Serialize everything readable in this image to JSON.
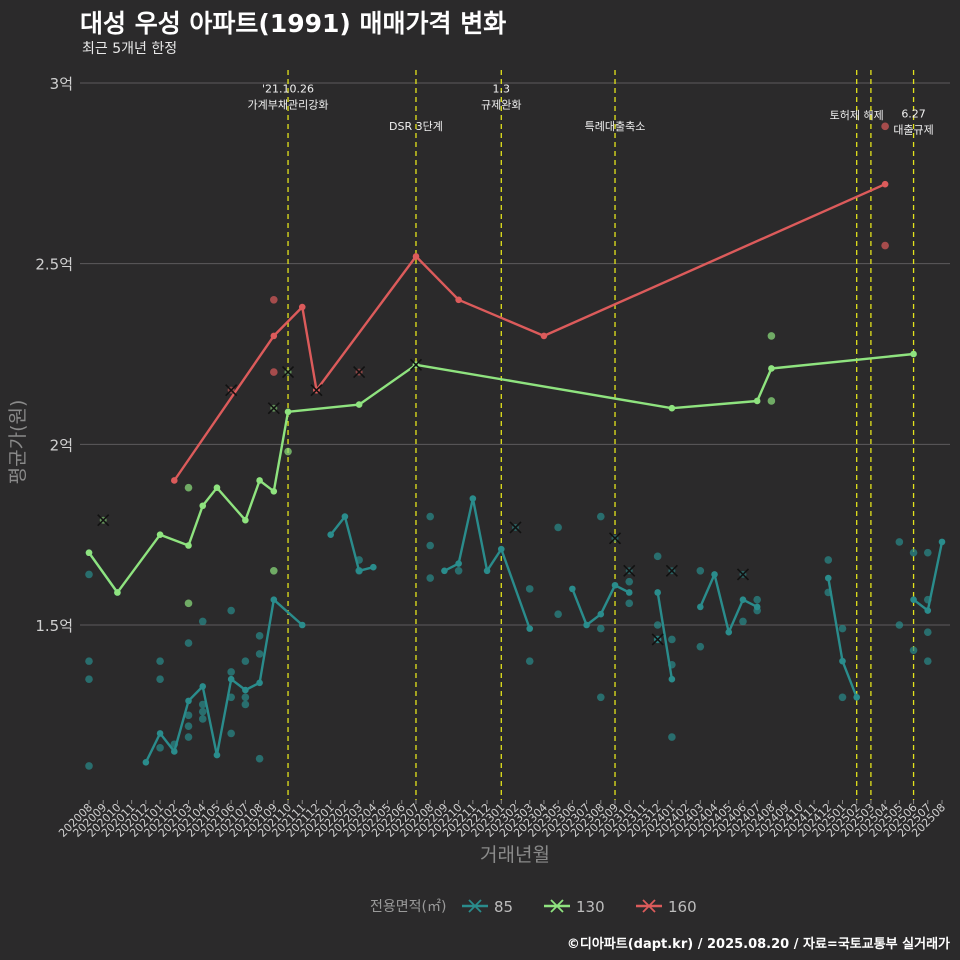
{
  "title": "대성 우성 아파트(1991) 매매가격 변화",
  "subtitle": "최근 5개년 한정",
  "caption": "©디아파트(dapt.kr) / 2025.08.20 / 자료=국토교통부 실거래가",
  "chart_data": {
    "type": "line",
    "xlabel": "거래년월",
    "ylabel": "평균가(원)",
    "ylim": [
      1.0,
      3.05
    ],
    "y_ticks": [
      {
        "value": 1.5,
        "label": "1.5억"
      },
      {
        "value": 2.0,
        "label": "2억"
      },
      {
        "value": 2.5,
        "label": "2.5억"
      },
      {
        "value": 3.0,
        "label": "3억"
      }
    ],
    "x_months": [
      "202008",
      "202009",
      "202010",
      "202011",
      "202012",
      "202101",
      "202102",
      "202103",
      "202104",
      "202105",
      "202106",
      "202107",
      "202108",
      "202109",
      "202110",
      "202111",
      "202112",
      "202201",
      "202202",
      "202203",
      "202204",
      "202205",
      "202206",
      "202207",
      "202208",
      "202209",
      "202210",
      "202211",
      "202212",
      "202301",
      "202302",
      "202303",
      "202304",
      "202305",
      "202306",
      "202307",
      "202308",
      "202309",
      "202310",
      "202311",
      "202312",
      "202401",
      "202402",
      "202403",
      "202404",
      "202405",
      "202406",
      "202407",
      "202408",
      "202409",
      "202410",
      "202411",
      "202412",
      "202501",
      "202502",
      "202503",
      "202504",
      "202505",
      "202506",
      "202507",
      "202508"
    ],
    "events": [
      {
        "month": "202110",
        "label": "'21.10.26\n가계부채관리강화",
        "label_y": 2.93
      },
      {
        "month": "202207",
        "label": "DSR 3단계",
        "label_y": 2.87
      },
      {
        "month": "202301",
        "label": "1.3\n규제완화",
        "label_y": 2.93
      },
      {
        "month": "202309",
        "label": "특례대출축소",
        "label_y": 2.87
      },
      {
        "month": "202502",
        "label": "토허제 해제",
        "label_y": 2.9
      },
      {
        "month": "202503",
        "label": "",
        "label_y": 2.9
      },
      {
        "month": "202506",
        "label": "6.27\n대출규제",
        "label_y": 2.86
      }
    ],
    "legend_title": "전용면적(㎡)",
    "legend_position": "bottom",
    "series": [
      {
        "name": "85",
        "color": "#2a8c8c",
        "line": [
          [
            [
              "202008",
              1.7
            ],
            [
              "202010",
              1.59
            ]
          ],
          [
            [
              "202012",
              1.12
            ],
            [
              "202101",
              1.2
            ],
            [
              "202102",
              1.15
            ],
            [
              "202103",
              1.29
            ],
            [
              "202104",
              1.33
            ],
            [
              "202105",
              1.14
            ],
            [
              "202106",
              1.35
            ],
            [
              "202107",
              1.32
            ],
            [
              "202108",
              1.34
            ],
            [
              "202109",
              1.57
            ],
            [
              "202111",
              1.5
            ]
          ],
          [
            [
              "202201",
              1.75
            ],
            [
              "202202",
              1.8
            ],
            [
              "202203",
              1.65
            ],
            [
              "202204",
              1.66
            ]
          ],
          [
            [
              "202209",
              1.65
            ],
            [
              "202210",
              1.67
            ],
            [
              "202211",
              1.85
            ],
            [
              "202212",
              1.65
            ],
            [
              "202301",
              1.71
            ],
            [
              "202303",
              1.49
            ]
          ],
          [
            [
              "202306",
              1.6
            ],
            [
              "202307",
              1.5
            ],
            [
              "202308",
              1.53
            ],
            [
              "202309",
              1.61
            ],
            [
              "202310",
              1.59
            ]
          ],
          [
            [
              "202312",
              1.59
            ],
            [
              "202401",
              1.35
            ]
          ],
          [
            [
              "202403",
              1.55
            ],
            [
              "202404",
              1.64
            ],
            [
              "202405",
              1.48
            ],
            [
              "202406",
              1.57
            ],
            [
              "202407",
              1.55
            ]
          ],
          [
            [
              "202412",
              1.63
            ],
            [
              "202501",
              1.4
            ],
            [
              "202502",
              1.3
            ]
          ],
          [
            [
              "202506",
              1.57
            ],
            [
              "202507",
              1.54
            ],
            [
              "202508",
              1.73
            ]
          ]
        ],
        "points": [
          [
            "202008",
            1.4
          ],
          [
            "202008",
            1.35
          ],
          [
            "202008",
            1.64
          ],
          [
            "202008",
            1.11
          ],
          [
            "202101",
            1.4
          ],
          [
            "202101",
            1.35
          ],
          [
            "202101",
            1.16
          ],
          [
            "202102",
            1.17
          ],
          [
            "202103",
            1.45
          ],
          [
            "202103",
            1.25
          ],
          [
            "202103",
            1.22
          ],
          [
            "202103",
            1.19
          ],
          [
            "202104",
            1.51
          ],
          [
            "202104",
            1.28
          ],
          [
            "202104",
            1.26
          ],
          [
            "202104",
            1.24
          ],
          [
            "202106",
            1.54
          ],
          [
            "202106",
            1.37
          ],
          [
            "202106",
            1.3
          ],
          [
            "202106",
            1.2
          ],
          [
            "202107",
            1.4
          ],
          [
            "202107",
            1.3
          ],
          [
            "202107",
            1.28
          ],
          [
            "202108",
            1.47
          ],
          [
            "202108",
            1.42
          ],
          [
            "202108",
            1.13
          ],
          [
            "202203",
            1.65
          ],
          [
            "202203",
            1.68
          ],
          [
            "202208",
            1.8
          ],
          [
            "202208",
            1.72
          ],
          [
            "202208",
            1.63
          ],
          [
            "202210",
            1.65
          ],
          [
            "202303",
            1.6
          ],
          [
            "202303",
            1.4
          ],
          [
            "202305",
            1.77
          ],
          [
            "202305",
            1.53
          ],
          [
            "202308",
            1.8
          ],
          [
            "202308",
            1.49
          ],
          [
            "202308",
            1.3
          ],
          [
            "202310",
            1.62
          ],
          [
            "202310",
            1.56
          ],
          [
            "202312",
            1.69
          ],
          [
            "202312",
            1.5
          ],
          [
            "202312",
            1.46
          ],
          [
            "202401",
            1.46
          ],
          [
            "202401",
            1.39
          ],
          [
            "202401",
            1.19
          ],
          [
            "202403",
            1.65
          ],
          [
            "202403",
            1.44
          ],
          [
            "202406",
            1.51
          ],
          [
            "202407",
            1.57
          ],
          [
            "202407",
            1.54
          ],
          [
            "202412",
            1.68
          ],
          [
            "202412",
            1.59
          ],
          [
            "202501",
            1.49
          ],
          [
            "202501",
            1.3
          ],
          [
            "202505",
            1.73
          ],
          [
            "202505",
            1.5
          ],
          [
            "202506",
            1.7
          ],
          [
            "202506",
            1.43
          ],
          [
            "202507",
            1.7
          ],
          [
            "202507",
            1.57
          ],
          [
            "202507",
            1.48
          ],
          [
            "202507",
            1.4
          ]
        ],
        "crosses": [
          [
            "202302",
            1.77
          ],
          [
            "202310",
            1.65
          ],
          [
            "202312",
            1.46
          ],
          [
            "202401",
            1.65
          ],
          [
            "202406",
            1.64
          ],
          [
            "202309",
            1.74
          ]
        ]
      },
      {
        "name": "130",
        "color": "#8fe37f",
        "line": [
          [
            [
              "202008",
              1.7
            ],
            [
              "202010",
              1.59
            ],
            [
              "202101",
              1.75
            ],
            [
              "202103",
              1.72
            ],
            [
              "202104",
              1.83
            ],
            [
              "202105",
              1.88
            ],
            [
              "202107",
              1.79
            ],
            [
              "202108",
              1.9
            ],
            [
              "202109",
              1.87
            ],
            [
              "202110",
              2.09
            ],
            [
              "202203",
              2.11
            ],
            [
              "202207",
              2.22
            ],
            [
              "202401",
              2.1
            ],
            [
              "202407",
              2.12
            ],
            [
              "202408",
              2.21
            ],
            [
              "202506",
              2.25
            ]
          ]
        ],
        "points": [
          [
            "202103",
            1.88
          ],
          [
            "202103",
            1.56
          ],
          [
            "202109",
            1.65
          ],
          [
            "202110",
            1.98
          ],
          [
            "202408",
            2.3
          ],
          [
            "202408",
            2.12
          ]
        ],
        "crosses": [
          [
            "202009",
            1.79
          ],
          [
            "202109",
            2.1
          ],
          [
            "202110",
            2.2
          ],
          [
            "202207",
            2.22
          ]
        ]
      },
      {
        "name": "160",
        "color": "#dc5b5b",
        "line": [
          [
            [
              "202102",
              1.9
            ],
            [
              "202109",
              2.3
            ],
            [
              "202111",
              2.38
            ],
            [
              "202112",
              2.15
            ],
            [
              "202207",
              2.52
            ],
            [
              "202210",
              2.4
            ],
            [
              "202304",
              2.3
            ],
            [
              "202504",
              2.72
            ]
          ]
        ],
        "points": [
          [
            "202109",
            2.4
          ],
          [
            "202109",
            2.2
          ],
          [
            "202504",
            2.88
          ],
          [
            "202504",
            2.55
          ]
        ],
        "crosses": [
          [
            "202106",
            2.15
          ],
          [
            "202112",
            2.15
          ],
          [
            "202203",
            2.2
          ]
        ]
      }
    ]
  }
}
